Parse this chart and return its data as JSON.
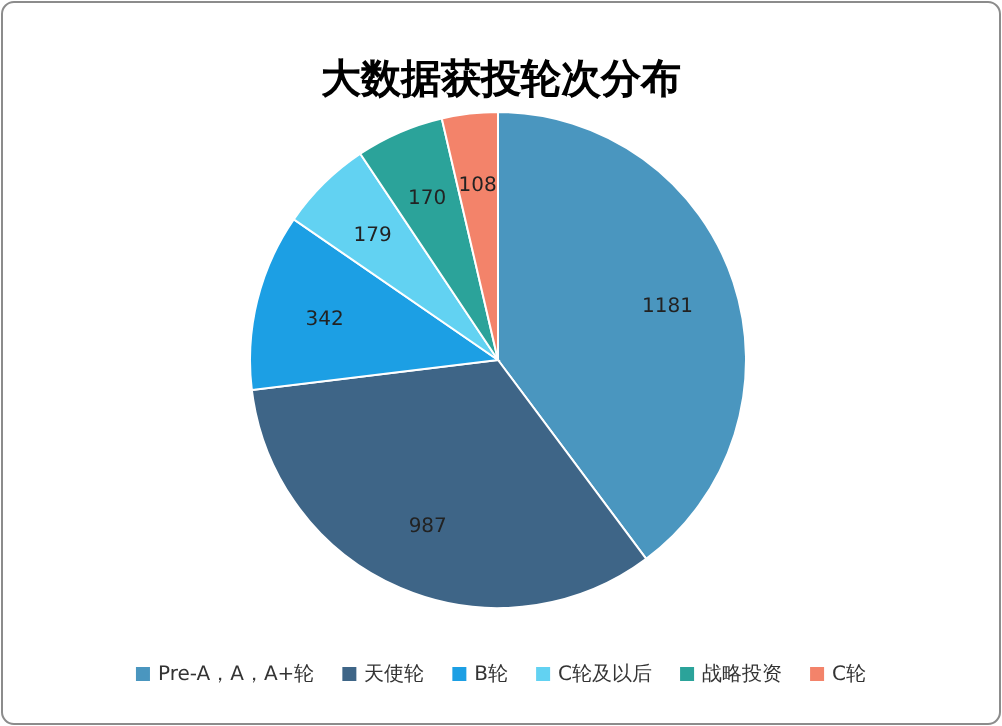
{
  "chart_data": {
    "type": "pie",
    "title": "大数据获投轮次分布",
    "categories": [
      "Pre-A，A，A+轮",
      "天使轮",
      "B轮",
      "C轮及以后",
      "战略投资",
      "C轮"
    ],
    "values": [
      1181,
      987,
      342,
      179,
      170,
      108
    ],
    "colors": [
      "#4a96bf",
      "#3e6587",
      "#1c9fe4",
      "#62d2f2",
      "#2ba39a",
      "#f3836a"
    ],
    "data_labels": true,
    "legend": "bottom"
  }
}
